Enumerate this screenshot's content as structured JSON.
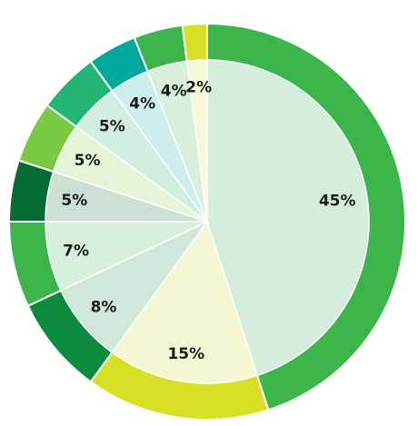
{
  "chart_data": {
    "type": "pie",
    "style": "donut-ring-over-pie",
    "title": "",
    "start_angle_deg": 0,
    "direction": "clockwise",
    "slices": [
      {
        "label": "45%",
        "value": 45,
        "ring_color": "#3cb54a",
        "inner_color": "#d4eedb"
      },
      {
        "label": "15%",
        "value": 15,
        "ring_color": "#d7e024",
        "inner_color": "#f5f7d2"
      },
      {
        "label": "8%",
        "value": 8,
        "ring_color": "#0d8c3e",
        "inner_color": "#cfe8d9"
      },
      {
        "label": "7%",
        "value": 7,
        "ring_color": "#3cb54a",
        "inner_color": "#d8efdc"
      },
      {
        "label": "5%",
        "value": 5,
        "ring_color": "#066a35",
        "inner_color": "#cde0d4"
      },
      {
        "label": "5%",
        "value": 5,
        "ring_color": "#7ac943",
        "inner_color": "#e6f4d8"
      },
      {
        "label": "5%",
        "value": 5,
        "ring_color": "#23b573",
        "inner_color": "#d2eee1"
      },
      {
        "label": "4%",
        "value": 4,
        "ring_color": "#00a99d",
        "inner_color": "#cceeec"
      },
      {
        "label": "4%",
        "value": 4,
        "ring_color": "#3cb54a",
        "inner_color": "#d8efdc"
      },
      {
        "label": "2%",
        "value": 2,
        "ring_color": "#d7e024",
        "inner_color": "#f7f8d8"
      }
    ]
  }
}
